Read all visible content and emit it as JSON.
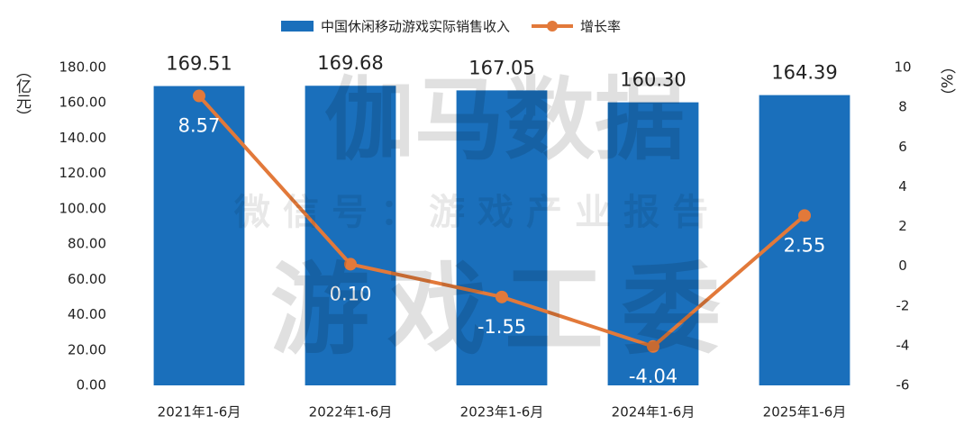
{
  "chart_data": {
    "type": "bar",
    "watermarks": [
      "伽马数据",
      "微信号：游戏产业报告",
      "游戏工委"
    ],
    "y_label": "（亿元）",
    "y2_label": "（%）",
    "categories": [
      "2021年1-6月",
      "2022年1-6月",
      "2023年1-6月",
      "2024年1-6月",
      "2025年1-6月"
    ],
    "series": [
      {
        "name": "中国休闲移动游戏实际销售收入",
        "type": "bar",
        "color": "#1a6fbb",
        "values": [
          169.51,
          169.68,
          167.05,
          160.3,
          164.39
        ],
        "value_labels": [
          "169.51",
          "169.68",
          "167.05",
          "160.30",
          "164.39"
        ]
      },
      {
        "name": "增长率",
        "type": "line",
        "axis": "y2",
        "color": "#e2793a",
        "values": [
          8.57,
          0.1,
          -1.55,
          -4.04,
          2.55
        ],
        "value_labels": [
          "8.57",
          "0.10",
          "-1.55",
          "-4.04",
          "2.55"
        ]
      }
    ],
    "ylim": [
      0,
      180
    ],
    "yticks": [
      {
        "value": 0,
        "label": "0.00"
      },
      {
        "value": 20,
        "label": "20.00"
      },
      {
        "value": 40,
        "label": "40.00"
      },
      {
        "value": 60,
        "label": "60.00"
      },
      {
        "value": 80,
        "label": "80.00"
      },
      {
        "value": 100,
        "label": "100.00"
      },
      {
        "value": 120,
        "label": "120.00"
      },
      {
        "value": 140,
        "label": "140.00"
      },
      {
        "value": 160,
        "label": "160.00"
      },
      {
        "value": 180,
        "label": "180.00"
      }
    ],
    "y2lim": [
      -6,
      10
    ],
    "y2ticks": [
      -6,
      -4,
      -2,
      0,
      2,
      4,
      6,
      8,
      10
    ]
  }
}
